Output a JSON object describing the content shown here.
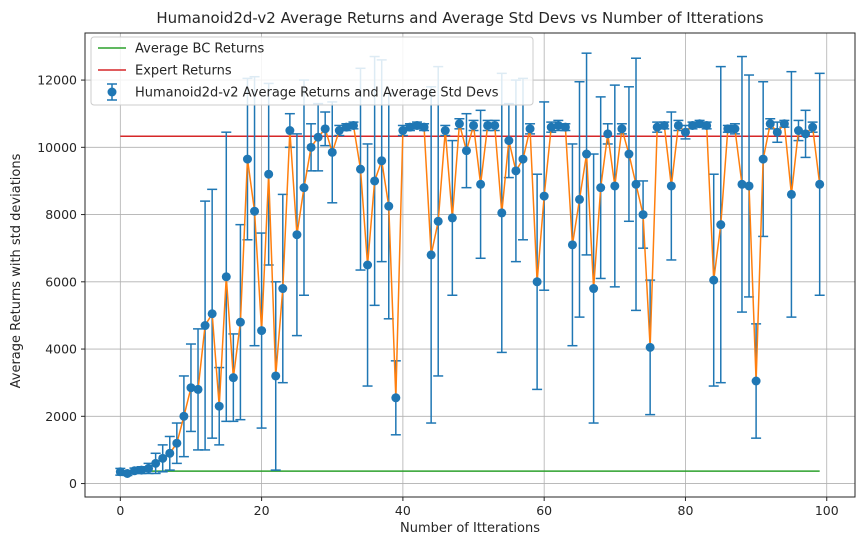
{
  "chart_data": {
    "type": "line",
    "title": "Humanoid2d-v2 Average Returns and Average Std Devs vs Number of Itterations",
    "xlabel": "Number of Itterations",
    "ylabel": "Average Returns with std deviations",
    "xlim": [
      -5,
      104
    ],
    "ylim": [
      -400,
      13400
    ],
    "xticks": [
      0,
      20,
      40,
      60,
      80,
      100
    ],
    "yticks": [
      0,
      2000,
      4000,
      6000,
      8000,
      10000,
      12000
    ],
    "grid": true,
    "legend_position": "top-left",
    "bc_returns": {
      "name": "Average BC Returns",
      "value": 370,
      "x_range": [
        0,
        99
      ],
      "color": "#2ca02c"
    },
    "expert_returns": {
      "name": "Expert Returns",
      "value": 10330,
      "x_range": [
        0,
        99
      ],
      "color": "#d62728"
    },
    "series": [
      {
        "name": "Humanoid2d-v2 Average Returns and Average Std Devs",
        "color": "#1f77b4",
        "line_color": "#ff7f0e",
        "x": [
          0,
          1,
          2,
          3,
          4,
          5,
          6,
          7,
          8,
          9,
          10,
          11,
          12,
          13,
          14,
          15,
          16,
          17,
          18,
          19,
          20,
          21,
          22,
          23,
          24,
          25,
          26,
          27,
          28,
          29,
          30,
          31,
          32,
          33,
          34,
          35,
          36,
          37,
          38,
          39,
          40,
          41,
          42,
          43,
          44,
          45,
          46,
          47,
          48,
          49,
          50,
          51,
          52,
          53,
          54,
          55,
          56,
          57,
          58,
          59,
          60,
          61,
          62,
          63,
          64,
          65,
          66,
          67,
          68,
          69,
          70,
          71,
          72,
          73,
          74,
          75,
          76,
          77,
          78,
          79,
          80,
          81,
          82,
          83,
          84,
          85,
          86,
          87,
          88,
          89,
          90,
          91,
          92,
          93,
          94,
          95,
          96,
          97,
          98,
          99
        ],
        "values": [
          350,
          300,
          380,
          400,
          450,
          600,
          750,
          900,
          1200,
          2000,
          2850,
          2800,
          4700,
          5050,
          2300,
          6150,
          3150,
          4800,
          9650,
          8100,
          4550,
          9200,
          3200,
          5800,
          10500,
          7400,
          8800,
          10000,
          10300,
          10550,
          9850,
          10500,
          10600,
          10650,
          9350,
          6500,
          9000,
          9600,
          8250,
          2550,
          10500,
          10600,
          10650,
          10600,
          6800,
          7800,
          10500,
          7900,
          10700,
          9900,
          10650,
          8900,
          10650,
          10650,
          8050,
          10200,
          9300,
          9650,
          10550,
          6000,
          8550,
          10600,
          10650,
          10600,
          7100,
          8450,
          9800,
          5800,
          8800,
          10400,
          8850,
          10550,
          9800,
          8900,
          8000,
          4050,
          10600,
          10650,
          8850,
          10650,
          10450,
          10650,
          10700,
          10650,
          6050,
          7700,
          10550,
          10550,
          8900,
          8850,
          3050,
          9650,
          10700,
          10450,
          10700,
          8600,
          10500,
          10400,
          10600,
          8900
        ],
        "errors": [
          100,
          60,
          80,
          100,
          150,
          300,
          400,
          500,
          600,
          1200,
          1300,
          1800,
          3700,
          3700,
          1150,
          4300,
          1300,
          2900,
          2400,
          4000,
          2900,
          2700,
          2800,
          2800,
          500,
          3000,
          3200,
          700,
          1000,
          500,
          1500,
          150,
          100,
          100,
          3000,
          3600,
          3700,
          3000,
          3350,
          1100,
          150,
          100,
          100,
          100,
          5000,
          4600,
          150,
          2300,
          150,
          1100,
          150,
          2200,
          150,
          150,
          4150,
          1100,
          2700,
          2400,
          150,
          3200,
          2800,
          150,
          150,
          100,
          3000,
          3500,
          3000,
          4000,
          2700,
          300,
          3000,
          150,
          2000,
          3750,
          1000,
          2000,
          150,
          100,
          2200,
          150,
          200,
          100,
          100,
          100,
          3150,
          4700,
          100,
          150,
          3800,
          3300,
          1700,
          2300,
          150,
          300,
          100,
          3650,
          300,
          700,
          150,
          3300
        ]
      }
    ]
  }
}
